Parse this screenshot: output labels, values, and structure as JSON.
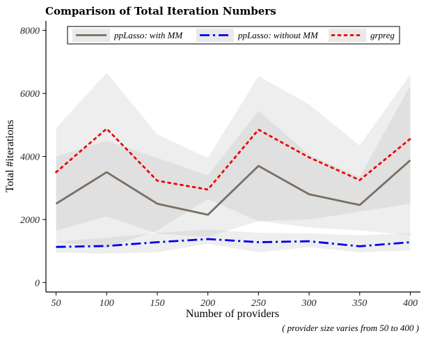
{
  "chart_data": {
    "type": "line",
    "title": "Comparison of Total Iteration Numbers",
    "xlabel": "Number of providers",
    "ylabel": "Total #iterations",
    "caption": "( provider size varies from 50 to 400 )",
    "x": [
      50,
      100,
      150,
      200,
      250,
      300,
      350,
      400
    ],
    "xlim": [
      40,
      410
    ],
    "ylim": [
      -300,
      8300
    ],
    "x_ticks": [
      "50",
      "100",
      "150",
      "200",
      "250",
      "300",
      "350",
      "400"
    ],
    "y_ticks": [
      "0",
      "2000",
      "4000",
      "6000",
      "8000"
    ],
    "grid": false,
    "legend_position": "top",
    "series": [
      {
        "name": "ppLasso: with MM",
        "values": [
          2500,
          3500,
          2500,
          2150,
          3700,
          2800,
          2460,
          3880
        ],
        "band_low": [
          1650,
          2100,
          1550,
          1450,
          1950,
          1750,
          1650,
          1500
        ],
        "band_high": [
          4900,
          6650,
          4700,
          3950,
          6550,
          5650,
          4350,
          6600
        ],
        "color": "#7a6e63",
        "line_style": "solid"
      },
      {
        "name": "ppLasso: without MM",
        "values": [
          1130,
          1160,
          1280,
          1380,
          1280,
          1310,
          1150,
          1280
        ],
        "band_low": [
          950,
          920,
          960,
          1230,
          960,
          1120,
          960,
          1020
        ],
        "band_high": [
          1300,
          1420,
          1580,
          1680,
          1580,
          1560,
          1500,
          1560
        ],
        "color": "#0000ee",
        "line_style": "dashdot"
      },
      {
        "name": "grpreg",
        "values": [
          3500,
          4880,
          3230,
          2950,
          4850,
          3970,
          3250,
          4560
        ],
        "band_low": [
          1300,
          1100,
          1650,
          2650,
          1950,
          2000,
          2250,
          2500
        ],
        "band_high": [
          4000,
          4500,
          3950,
          3400,
          5450,
          4050,
          3350,
          6250
        ],
        "color": "#ee0000",
        "line_style": "dotted"
      }
    ]
  }
}
